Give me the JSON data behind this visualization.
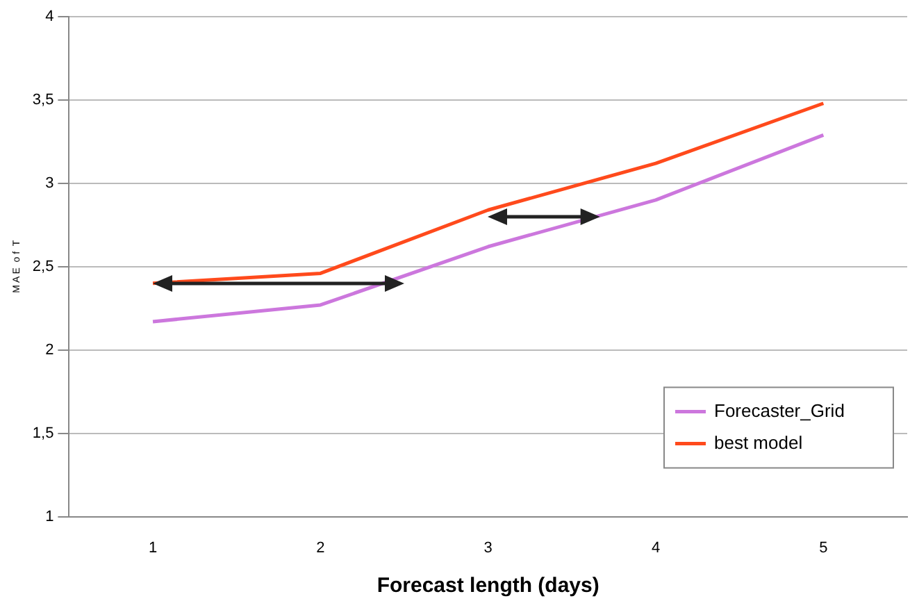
{
  "chart_data": {
    "type": "line",
    "xlabel": "Forecast length (days)",
    "ylabel": "M A E  o f  T",
    "categories": [
      "1",
      "2",
      "3",
      "4",
      "5"
    ],
    "series": [
      {
        "name": "Forecaster_Grid",
        "color": "#cc77dd",
        "values": [
          2.17,
          2.27,
          2.62,
          2.9,
          3.29
        ]
      },
      {
        "name": "best model",
        "color": "#ff4a1c",
        "values": [
          2.4,
          2.46,
          2.84,
          3.12,
          3.48
        ]
      }
    ],
    "ylim": [
      1,
      4
    ],
    "yticks": [
      {
        "value": 1,
        "label": "1"
      },
      {
        "value": 1.5,
        "label": "1,5"
      },
      {
        "value": 2,
        "label": "2"
      },
      {
        "value": 2.5,
        "label": "2,5"
      },
      {
        "value": 3,
        "label": "3"
      },
      {
        "value": 3.5,
        "label": "3,5"
      },
      {
        "value": 4,
        "label": "4"
      }
    ],
    "grid": "y",
    "legend": "bottom right",
    "marker": "none",
    "line_style": "solid"
  }
}
